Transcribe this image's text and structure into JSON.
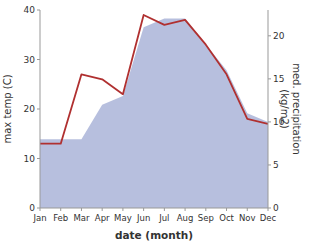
{
  "chart_data": {
    "type": "line",
    "xlabel": "date (month)",
    "ylabel": "max temp (C)",
    "y2label": "med. precipitation\n(kg/m2)",
    "categories": [
      "Jan",
      "Feb",
      "Mar",
      "Apr",
      "May",
      "Jun",
      "Jul",
      "Aug",
      "Sep",
      "Oct",
      "Nov",
      "Dec"
    ],
    "series": [
      {
        "type": "line",
        "color": "#b03030",
        "values": [
          13,
          13,
          27,
          26,
          23,
          39,
          37,
          38,
          33,
          27,
          18,
          17
        ]
      },
      {
        "type": "area",
        "axis": "y2",
        "color": "#aab4d8",
        "values": [
          8,
          8,
          8,
          12,
          13,
          21,
          22,
          22,
          19,
          16,
          11,
          10
        ]
      }
    ],
    "ylim": [
      0,
      40
    ],
    "yticks": [
      0,
      10,
      20,
      30,
      40
    ],
    "y2lim": [
      0,
      23
    ],
    "y2ticks": [
      0,
      5,
      10,
      15,
      20
    ],
    "grid": false
  }
}
